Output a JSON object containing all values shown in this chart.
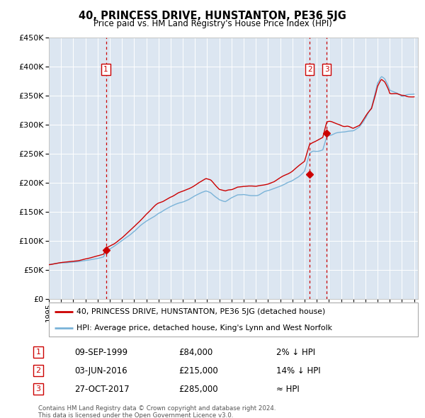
{
  "title": "40, PRINCESS DRIVE, HUNSTANTON, PE36 5JG",
  "subtitle": "Price paid vs. HM Land Registry's House Price Index (HPI)",
  "legend_line1": "40, PRINCESS DRIVE, HUNSTANTON, PE36 5JG (detached house)",
  "legend_line2": "HPI: Average price, detached house, King's Lynn and West Norfolk",
  "footer1": "Contains HM Land Registry data © Crown copyright and database right 2024.",
  "footer2": "This data is licensed under the Open Government Licence v3.0.",
  "sales": [
    {
      "num": 1,
      "date": "09-SEP-1999",
      "year": 1999.69,
      "price": 84000,
      "label": "2% ↓ HPI"
    },
    {
      "num": 2,
      "date": "03-JUN-2016",
      "year": 2016.42,
      "price": 215000,
      "label": "14% ↓ HPI"
    },
    {
      "num": 3,
      "date": "27-OCT-2017",
      "year": 2017.82,
      "price": 285000,
      "label": "≈ HPI"
    }
  ],
  "ylim": [
    0,
    450000
  ],
  "xlim_start": 1995.0,
  "xlim_end": 2025.3,
  "background_color": "#dce6f1",
  "grid_color": "#ffffff",
  "hpi_color": "#7ab3d8",
  "price_color": "#cc0000",
  "sale_dot_color": "#cc0000",
  "vline_color": "#cc0000",
  "label_box_color": "#cc0000",
  "yticks": [
    0,
    50000,
    100000,
    150000,
    200000,
    250000,
    300000,
    350000,
    400000,
    450000
  ],
  "xticks": [
    1995,
    1996,
    1997,
    1998,
    1999,
    2000,
    2001,
    2002,
    2003,
    2004,
    2005,
    2006,
    2007,
    2008,
    2009,
    2010,
    2011,
    2012,
    2013,
    2014,
    2015,
    2016,
    2017,
    2018,
    2019,
    2020,
    2021,
    2022,
    2023,
    2024,
    2025
  ],
  "key_years_hpi": [
    1995.0,
    1995.5,
    1996.0,
    1996.5,
    1997.0,
    1997.5,
    1998.0,
    1998.5,
    1999.0,
    1999.5,
    1999.69,
    2000.0,
    2000.5,
    2001.0,
    2001.5,
    2002.0,
    2002.5,
    2003.0,
    2003.5,
    2004.0,
    2004.5,
    2005.0,
    2005.5,
    2006.0,
    2006.5,
    2007.0,
    2007.3,
    2007.6,
    2007.9,
    2008.3,
    2008.7,
    2009.0,
    2009.5,
    2010.0,
    2010.5,
    2011.0,
    2011.5,
    2012.0,
    2012.5,
    2013.0,
    2013.5,
    2014.0,
    2014.5,
    2015.0,
    2015.5,
    2016.0,
    2016.42,
    2016.7,
    2017.0,
    2017.5,
    2017.82,
    2018.0,
    2018.5,
    2019.0,
    2019.5,
    2020.0,
    2020.5,
    2021.0,
    2021.5,
    2022.0,
    2022.3,
    2022.6,
    2022.9,
    2023.0,
    2023.5,
    2024.0,
    2024.5,
    2025.0
  ],
  "key_vals_hpi": [
    59000,
    60000,
    61500,
    63000,
    64500,
    66000,
    68000,
    70500,
    73000,
    76000,
    85700,
    90000,
    97000,
    104000,
    112000,
    121000,
    131000,
    140000,
    148000,
    155000,
    161000,
    166000,
    170000,
    175000,
    180000,
    187000,
    191000,
    194000,
    196000,
    192000,
    183000,
    177000,
    174000,
    178000,
    183000,
    185000,
    184000,
    183000,
    184000,
    186000,
    190000,
    195000,
    200000,
    205000,
    212000,
    220000,
    250000,
    255000,
    258000,
    262000,
    285000,
    287000,
    290000,
    292000,
    294000,
    293000,
    298000,
    310000,
    325000,
    365000,
    375000,
    370000,
    358000,
    352000,
    350000,
    348000,
    350000,
    352000
  ]
}
